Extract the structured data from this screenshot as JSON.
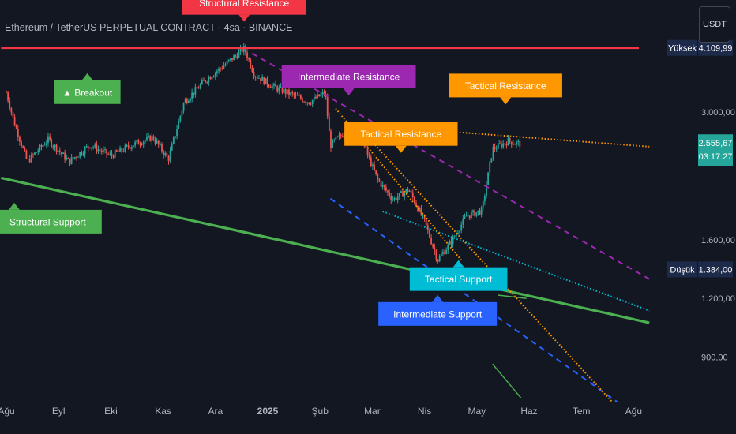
{
  "header": {
    "title": "Ethereum / TetherUS PERPETUAL CONTRACT · 4sa · BINANCE",
    "currency_button": "USDT"
  },
  "colors": {
    "background": "#131722",
    "up_candle": "#26a69a",
    "down_candle": "#ef5350",
    "structural_resistance": "#f23645",
    "intermediate_resistance": "#9c27b0",
    "tactical_resistance": "#ff9800",
    "tactical_support": "#00bcd4",
    "intermediate_support": "#2962ff",
    "structural_support": "#4caf50",
    "breakout": "#4caf50"
  },
  "chart_data": {
    "type": "candlestick",
    "symbol": "ETHUSDT.P",
    "timeframe": "4sa",
    "y_scale": "log",
    "ylim": [
      720,
      5200
    ],
    "x_labels": [
      "Ağu",
      "Eyl",
      "Eki",
      "Kas",
      "Ara",
      "2025",
      "Şub",
      "Mar",
      "Nis",
      "May",
      "Haz",
      "Tem",
      "Ağu"
    ],
    "y_ticks": [
      "3.000,00",
      "1.600,00",
      "1.200,00",
      "900,00"
    ],
    "y_tick_values": [
      3000,
      1600,
      1200,
      900
    ],
    "price_markers": [
      {
        "label": "Yüksek",
        "value_text": "4.109,99",
        "value": 4109.99
      },
      {
        "label": "Düşük",
        "value_text": "1.384,00",
        "value": 1384.0
      }
    ],
    "last_price": {
      "value_text": "2.555,67",
      "value": 2555.67,
      "countdown": "03:17:27"
    },
    "price_path": [
      {
        "t": 0,
        "p": 3300
      },
      {
        "t": 0.15,
        "p": 2850
      },
      {
        "t": 0.4,
        "p": 2350
      },
      {
        "t": 0.8,
        "p": 2620
      },
      {
        "t": 1.2,
        "p": 2350
      },
      {
        "t": 1.6,
        "p": 2550
      },
      {
        "t": 2.0,
        "p": 2420
      },
      {
        "t": 2.4,
        "p": 2550
      },
      {
        "t": 2.8,
        "p": 2650
      },
      {
        "t": 3.1,
        "p": 2380
      },
      {
        "t": 3.4,
        "p": 3150
      },
      {
        "t": 3.8,
        "p": 3500
      },
      {
        "t": 4.2,
        "p": 3800
      },
      {
        "t": 4.55,
        "p": 4100
      },
      {
        "t": 4.75,
        "p": 3600
      },
      {
        "t": 5.1,
        "p": 3400
      },
      {
        "t": 5.5,
        "p": 3250
      },
      {
        "t": 5.8,
        "p": 3150
      },
      {
        "t": 6.1,
        "p": 3300
      },
      {
        "t": 6.2,
        "p": 2550
      },
      {
        "t": 6.45,
        "p": 2700
      },
      {
        "t": 6.75,
        "p": 2700
      },
      {
        "t": 7.1,
        "p": 2150
      },
      {
        "t": 7.4,
        "p": 1950
      },
      {
        "t": 7.7,
        "p": 2050
      },
      {
        "t": 8.0,
        "p": 1750
      },
      {
        "t": 8.25,
        "p": 1450
      },
      {
        "t": 8.5,
        "p": 1580
      },
      {
        "t": 8.8,
        "p": 1800
      },
      {
        "t": 9.1,
        "p": 1850
      },
      {
        "t": 9.3,
        "p": 2500
      },
      {
        "t": 9.6,
        "p": 2600
      },
      {
        "t": 9.85,
        "p": 2560
      }
    ],
    "trendlines": [
      {
        "name": "Structural Resistance",
        "color_key": "structural_resistance",
        "style": "solid",
        "points": [
          {
            "t": -0.1,
            "p": 4109.99
          },
          {
            "t": 12.1,
            "p": 4109.99
          }
        ]
      },
      {
        "name": "Structural Support",
        "color_key": "structural_support",
        "style": "solid",
        "points": [
          {
            "t": -0.1,
            "p": 2170
          },
          {
            "t": 12.3,
            "p": 1065
          }
        ]
      },
      {
        "name": "Tactical Resistance",
        "color_key": "tactical_resistance",
        "style": "dotted",
        "points": [
          {
            "t": 6.5,
            "p": 2830
          },
          {
            "t": 12.3,
            "p": 2530
          }
        ]
      },
      {
        "name": "Intermediate Resistance",
        "color_key": "intermediate_resistance",
        "style": "dashed",
        "points": [
          {
            "t": 4.7,
            "p": 4000
          },
          {
            "t": 12.3,
            "p": 1320
          }
        ]
      },
      {
        "name": "Tactical Support",
        "color_key": "tactical_support",
        "style": "dotted",
        "points": [
          {
            "t": 7.2,
            "p": 1840
          },
          {
            "t": 12.3,
            "p": 1130
          }
        ]
      },
      {
        "name": "Intermediate Support",
        "color_key": "intermediate_support",
        "style": "dashed",
        "points": [
          {
            "t": 6.2,
            "p": 1960
          },
          {
            "t": 11.7,
            "p": 720
          }
        ]
      },
      {
        "name": "Tactical Resistance",
        "color_key": "tactical_resistance",
        "style": "dotted",
        "points": [
          {
            "t": 6.85,
            "p": 2700
          },
          {
            "t": 11.6,
            "p": 720
          }
        ]
      },
      {
        "name": "Tactical Resistance",
        "color_key": "tactical_resistance",
        "style": "dotted",
        "points": [
          {
            "t": 6.3,
            "p": 3050
          },
          {
            "t": 8.7,
            "p": 1450
          }
        ]
      },
      {
        "name": "Structural Support",
        "color_key": "structural_support",
        "style": "solid",
        "points": [
          {
            "t": 9.3,
            "p": 870
          },
          {
            "t": 9.85,
            "p": 735
          }
        ]
      },
      {
        "name": "Structural Support",
        "color_key": "structural_support",
        "style": "solid",
        "points": [
          {
            "t": 9.4,
            "p": 1220
          },
          {
            "t": 9.95,
            "p": 1200
          }
        ]
      }
    ],
    "annotations": [
      {
        "text": "Structural Resistance",
        "color_key": "structural_resistance",
        "t": 4.55,
        "p": 4109.99,
        "pointer": "down",
        "offset": 42
      },
      {
        "text": "Intermediate Resistance",
        "color_key": "intermediate_resistance",
        "t": 6.55,
        "p": 2930,
        "pointer": "down",
        "offset": 36
      },
      {
        "text": "Tactical Resistance",
        "color_key": "tactical_resistance",
        "t": 7.55,
        "p": 2210,
        "pointer": "down",
        "offset": 36
      },
      {
        "text": "Tactical Resistance",
        "color_key": "tactical_resistance",
        "t": 9.55,
        "p": 2760,
        "pointer": "down",
        "offset": 40
      },
      {
        "text": "Breakout",
        "prefix": "▲ ",
        "color_key": "breakout",
        "t": 1.55,
        "p": 3700,
        "pointer": "up",
        "offset": 14
      },
      {
        "text": "Structural Support",
        "color_key": "structural_support",
        "t": 0.15,
        "p": 2020,
        "pointer": "up",
        "offset": 22
      },
      {
        "text": "Tactical Support",
        "color_key": "tactical_support",
        "t": 8.65,
        "p": 1500,
        "pointer": "up",
        "offset": 18
      },
      {
        "text": "Intermediate Support",
        "color_key": "intermediate_support",
        "t": 8.25,
        "p": 1420,
        "pointer": "up",
        "offset": 48
      }
    ]
  }
}
